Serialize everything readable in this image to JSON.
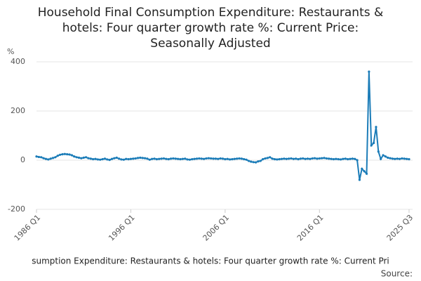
{
  "chart_data": {
    "type": "line",
    "title": [
      "Household Final Consumption Expenditure: Restaurants &",
      "hotels: Four quarter growth rate %: Current Price:",
      "Seasonally Adjusted"
    ],
    "y_label": "%",
    "categories": [
      "1986 Q1",
      null,
      null,
      null,
      null,
      null,
      null,
      null,
      null,
      null,
      null,
      null,
      null,
      null,
      null,
      null,
      null,
      null,
      null,
      null,
      null,
      null,
      null,
      null,
      null,
      null,
      null,
      null,
      null,
      null,
      null,
      null,
      null,
      null,
      null,
      null,
      null,
      null,
      null,
      null,
      "1996 Q1",
      null,
      null,
      null,
      null,
      null,
      null,
      null,
      null,
      null,
      null,
      null,
      null,
      null,
      null,
      null,
      null,
      null,
      null,
      null,
      null,
      null,
      null,
      null,
      null,
      null,
      null,
      null,
      null,
      null,
      null,
      null,
      null,
      null,
      null,
      null,
      null,
      null,
      null,
      null,
      "2006 Q1",
      null,
      null,
      null,
      null,
      null,
      null,
      null,
      null,
      null,
      null,
      null,
      null,
      null,
      null,
      null,
      null,
      null,
      null,
      null,
      null,
      null,
      null,
      null,
      null,
      null,
      null,
      null,
      null,
      null,
      null,
      null,
      null,
      null,
      null,
      null,
      null,
      null,
      null,
      null,
      "2016 Q1",
      null,
      null,
      null,
      null,
      null,
      null,
      null,
      null,
      null,
      null,
      null,
      null,
      null,
      null,
      null,
      null,
      null,
      null,
      null,
      null,
      null,
      null,
      null,
      null,
      null,
      null,
      null,
      null,
      null,
      null,
      null,
      null,
      null,
      null,
      null,
      null,
      null,
      "2025 Q3"
    ],
    "series": [
      {
        "name": "sumption Expenditure: Restaurants & hotels: Four quarter growth rate %: Current Pri",
        "color": "#1b7cb8",
        "values": [
          15,
          13,
          12,
          8,
          5,
          3,
          6,
          9,
          12,
          18,
          22,
          24,
          25,
          24,
          23,
          20,
          15,
          12,
          10,
          8,
          10,
          12,
          8,
          6,
          4,
          5,
          3,
          2,
          4,
          6,
          3,
          1,
          5,
          8,
          10,
          6,
          3,
          2,
          5,
          4,
          5,
          6,
          7,
          9,
          10,
          9,
          8,
          6,
          2,
          5,
          6,
          4,
          5,
          6,
          7,
          5,
          4,
          6,
          7,
          6,
          5,
          4,
          5,
          6,
          3,
          2,
          4,
          5,
          6,
          7,
          6,
          5,
          7,
          8,
          7,
          6,
          6,
          5,
          7,
          6,
          4,
          5,
          3,
          4,
          5,
          6,
          7,
          6,
          4,
          2,
          -3,
          -6,
          -8,
          -9,
          -5,
          -3,
          4,
          7,
          9,
          12,
          6,
          4,
          3,
          4,
          5,
          6,
          5,
          6,
          7,
          5,
          6,
          4,
          6,
          7,
          5,
          6,
          5,
          7,
          8,
          6,
          7,
          8,
          9,
          7,
          6,
          5,
          4,
          5,
          4,
          3,
          5,
          6,
          4,
          5,
          6,
          5,
          0,
          -80,
          -35,
          -45,
          -55,
          360,
          60,
          70,
          135,
          35,
          5,
          20,
          15,
          10,
          8,
          6,
          5,
          6,
          5,
          7,
          6,
          5,
          4
        ]
      }
    ],
    "source": "Source:",
    "ylim": [
      -200,
      400
    ],
    "yticks": [
      -200,
      0,
      200,
      400
    ],
    "grid": true
  }
}
